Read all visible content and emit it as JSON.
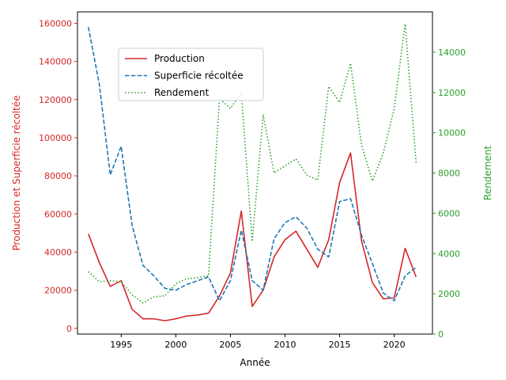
{
  "chart_data": {
    "type": "line",
    "xlabel": "Année",
    "ylabel_left": "Production et Superficie récoltée",
    "ylabel_right": "Rendement",
    "xlim": [
      1991,
      2023.5
    ],
    "ylim_left": [
      -3000,
      166000
    ],
    "ylim_right": [
      0,
      16000
    ],
    "x_ticks": [
      1995,
      2000,
      2005,
      2010,
      2015,
      2020
    ],
    "y_left_ticks": [
      0,
      20000,
      40000,
      60000,
      80000,
      100000,
      120000,
      140000,
      160000
    ],
    "y_right_ticks": [
      0,
      2000,
      4000,
      6000,
      8000,
      10000,
      12000,
      14000
    ],
    "grid": false,
    "legend_position": "upper-left-inset",
    "colors": {
      "production": "#d62728",
      "superficie": "#1f77b4",
      "rendement": "#2ca02c"
    },
    "x": [
      1992,
      1993,
      1994,
      1995,
      1996,
      1997,
      1998,
      1999,
      2000,
      2001,
      2002,
      2003,
      2004,
      2005,
      2006,
      2007,
      2008,
      2009,
      2010,
      2011,
      2012,
      2013,
      2014,
      2015,
      2016,
      2017,
      2018,
      2019,
      2020,
      2021,
      2022
    ],
    "series": [
      {
        "name": "Production",
        "axis": "left",
        "style": "solid",
        "color": "#d62728",
        "values": [
          49500,
          34500,
          22000,
          25000,
          10000,
          5000,
          5000,
          4000,
          5000,
          6500,
          7000,
          8000,
          17000,
          29000,
          61500,
          11500,
          20000,
          37500,
          46500,
          51000,
          41500,
          32000,
          46500,
          76500,
          92000,
          46000,
          24000,
          15500,
          16000,
          42000,
          27000
        ]
      },
      {
        "name": "Superficie récoltée",
        "axis": "left",
        "style": "dashed",
        "color": "#1f77b4",
        "values": [
          158000,
          128000,
          80500,
          95500,
          54000,
          33000,
          27500,
          21000,
          20000,
          23000,
          25000,
          27000,
          14500,
          25000,
          51500,
          25000,
          20000,
          47000,
          55500,
          58500,
          52500,
          41500,
          37500,
          66500,
          68000,
          49000,
          34000,
          18500,
          14500,
          27500,
          32000
        ]
      },
      {
        "name": "Rendement",
        "axis": "right",
        "style": "dotted",
        "color": "#2ca02c",
        "values": [
          3100,
          2600,
          2650,
          2600,
          1950,
          1550,
          1850,
          1900,
          2500,
          2750,
          2800,
          2900,
          11700,
          11200,
          12000,
          4600,
          10900,
          8000,
          8350,
          8700,
          7900,
          7650,
          12300,
          11500,
          13450,
          9400,
          7600,
          9000,
          11200,
          15400,
          8500
        ]
      }
    ]
  }
}
